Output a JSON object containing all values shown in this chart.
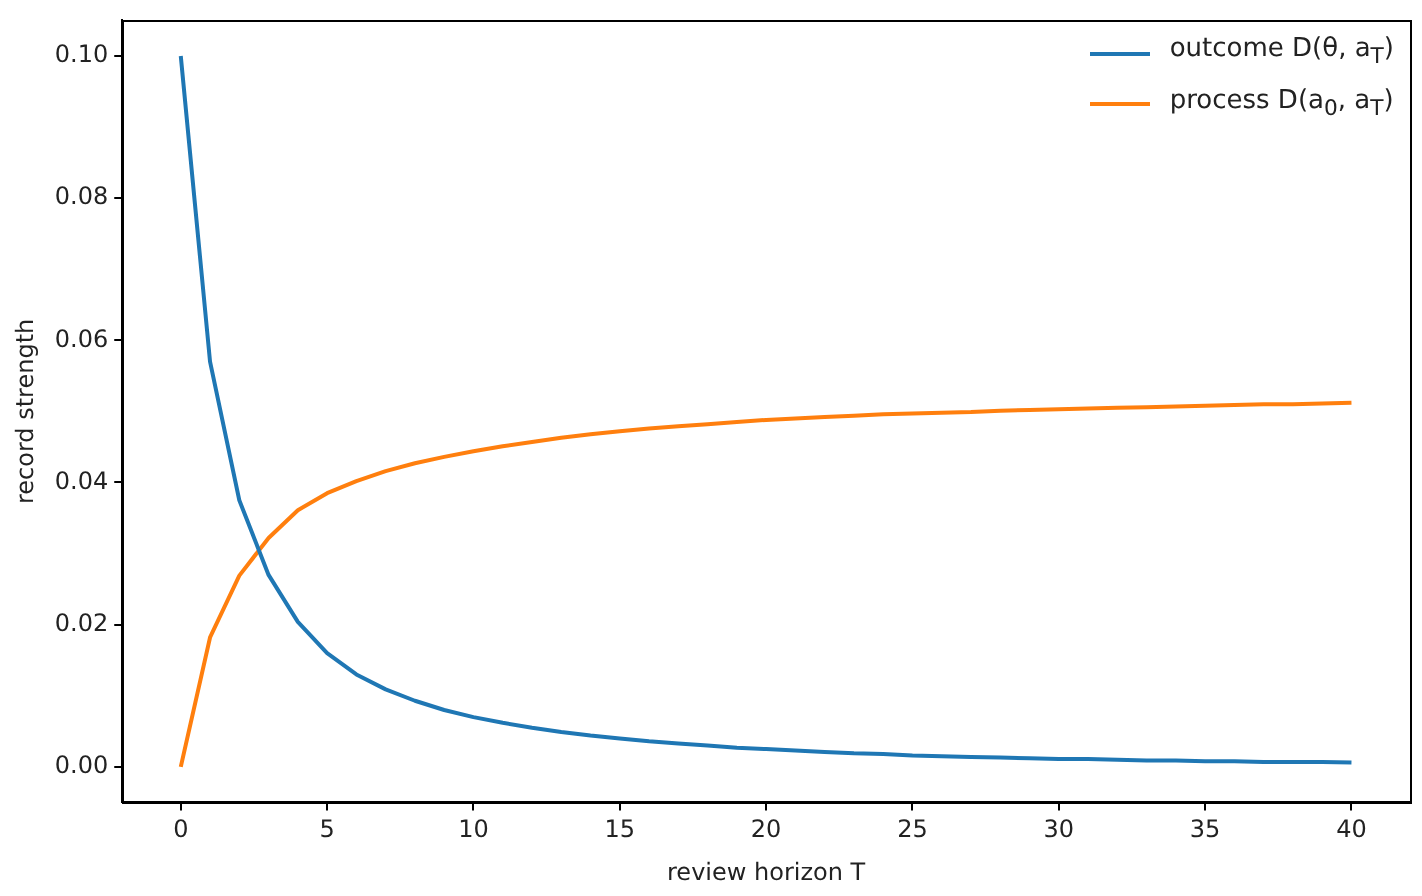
{
  "chart_data": {
    "type": "line",
    "xlabel": "review horizon T",
    "ylabel": "record strength",
    "x": [
      0,
      1,
      2,
      3,
      4,
      5,
      6,
      7,
      8,
      9,
      10,
      11,
      12,
      13,
      14,
      15,
      16,
      17,
      18,
      19,
      20,
      21,
      22,
      23,
      24,
      25,
      26,
      27,
      28,
      29,
      30,
      31,
      32,
      33,
      34,
      35,
      36,
      37,
      38,
      39,
      40
    ],
    "series": [
      {
        "name": "outcome D(θ, a$_{T}$)",
        "color": "#1f77b4",
        "values": [
          0.1,
          0.057,
          0.0375,
          0.027,
          0.0204,
          0.016,
          0.013,
          0.0109,
          0.0093,
          0.008,
          0.007,
          0.0062,
          0.0055,
          0.0049,
          0.0044,
          0.004,
          0.0036,
          0.0033,
          0.003,
          0.0027,
          0.0025,
          0.0023,
          0.0021,
          0.0019,
          0.0018,
          0.0016,
          0.0015,
          0.0014,
          0.0013,
          0.0012,
          0.0011,
          0.0011,
          0.001,
          0.0009,
          0.0009,
          0.0008,
          0.0008,
          0.0007,
          0.0007,
          0.0007,
          0.0006
        ]
      },
      {
        "name": "process D(a$_{0}$, a$_{T}$)",
        "color": "#ff7f0e",
        "values": [
          0,
          0.0182,
          0.0269,
          0.0322,
          0.0361,
          0.0385,
          0.0402,
          0.0416,
          0.0427,
          0.0436,
          0.0444,
          0.0451,
          0.0457,
          0.0463,
          0.0468,
          0.0472,
          0.0476,
          0.0479,
          0.0482,
          0.0485,
          0.0488,
          0.049,
          0.0492,
          0.0494,
          0.0496,
          0.0497,
          0.0498,
          0.0499,
          0.0501,
          0.0502,
          0.0503,
          0.0504,
          0.0505,
          0.0506,
          0.0507,
          0.0508,
          0.0509,
          0.051,
          0.051,
          0.0511,
          0.0512
        ]
      }
    ],
    "xlim": [
      -2,
      42
    ],
    "xticks": [
      0,
      5,
      10,
      15,
      20,
      25,
      30,
      35,
      40
    ],
    "ylim": [
      -0.005,
      0.105
    ],
    "yticks": [
      {
        "value": 0,
        "label": "0.00"
      },
      {
        "value": 0.02,
        "label": "0.02"
      },
      {
        "value": 0.04,
        "label": "0.04"
      },
      {
        "value": 0.06,
        "label": "0.06"
      },
      {
        "value": 0.08,
        "label": "0.08"
      },
      {
        "value": 0.1,
        "label": "0.10"
      }
    ],
    "grid": false,
    "legend": "top right",
    "marker": "none",
    "line_style": "solid"
  }
}
